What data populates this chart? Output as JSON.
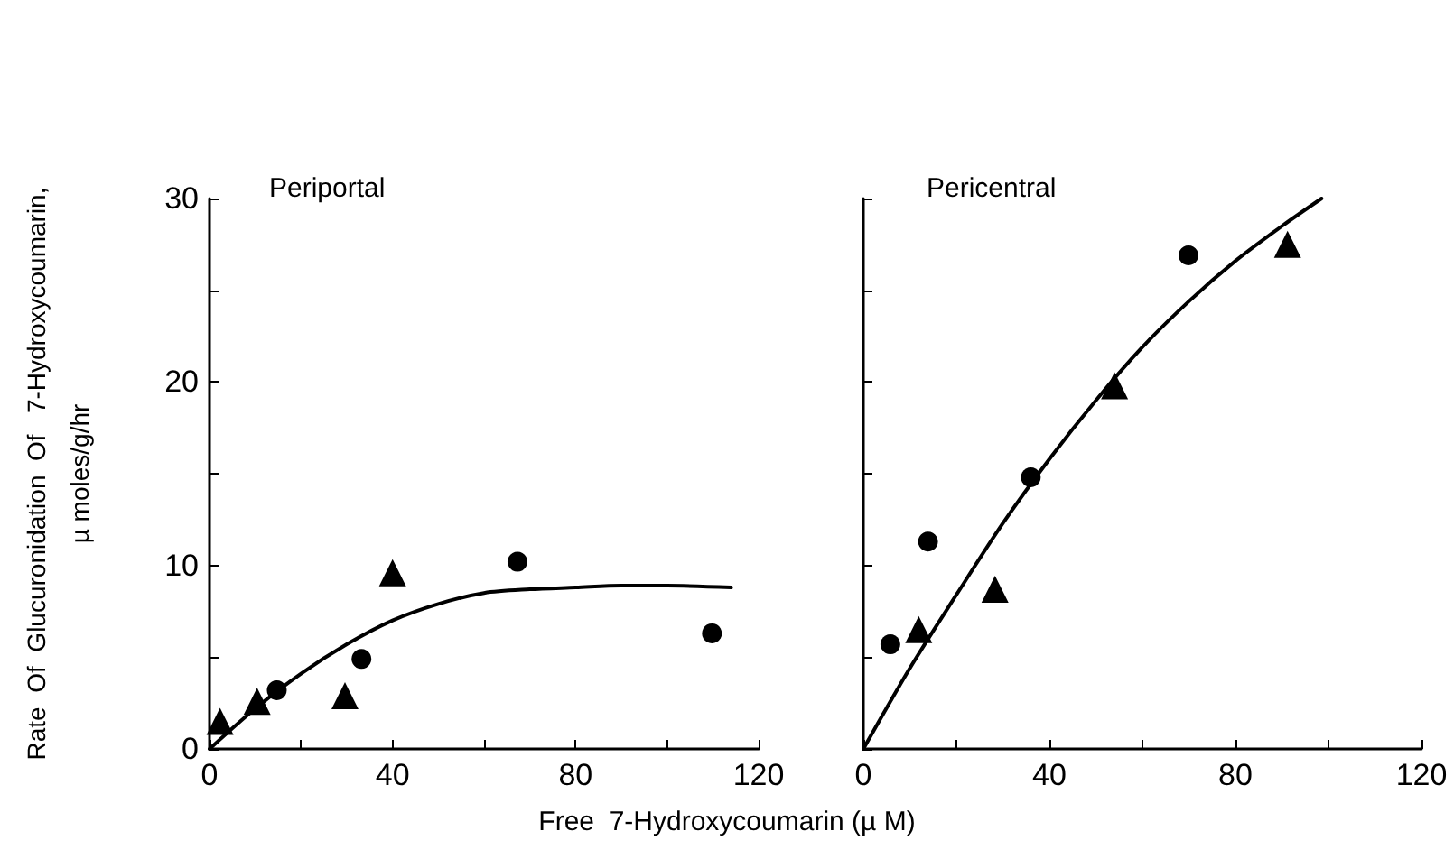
{
  "chart_data": [
    {
      "type": "scatter",
      "title": "Periportal",
      "xlabel": "Free  7-Hydroxycoumarin (µ M)",
      "ylabel": "Rate  Of  Glucuronidation  Of   7-Hydroxycoumarin,\nµ moles/g/hr",
      "xlim": [
        0,
        120
      ],
      "xticks": [
        0,
        {
          "value": 20,
          "label": null
        },
        40,
        {
          "value": 60,
          "label": null
        },
        80,
        {
          "value": 100,
          "label": null
        },
        120
      ],
      "ylim": [
        0,
        30
      ],
      "yticks": [
        0,
        {
          "value": 5,
          "label": null
        },
        10,
        {
          "value": 15,
          "label": null
        },
        20,
        {
          "value": 25,
          "label": null
        },
        30
      ],
      "grid": false,
      "series": [
        {
          "marker": "circle",
          "color": "#000000",
          "x": [
            14.7,
            33.2,
            67.3,
            109.8
          ],
          "values": [
            3.2,
            4.9,
            10.2,
            6.3
          ]
        },
        {
          "marker": "triangle",
          "color": "#000000",
          "x": [
            2.3,
            10.4,
            29.6,
            40
          ],
          "values": [
            1.5,
            2.6,
            2.9,
            9.6
          ]
        },
        {
          "type": "line",
          "marker": "none",
          "color": "#000000",
          "x": [
            0,
            10,
            20,
            30,
            40,
            50,
            60,
            70,
            80,
            90,
            100,
            114
          ],
          "values": [
            0,
            2.2,
            4.1,
            5.7,
            7.0,
            7.9,
            8.5,
            8.7,
            8.8,
            8.9,
            8.9,
            8.8
          ]
        }
      ]
    },
    {
      "type": "scatter",
      "title": "Pericentral",
      "xlim": [
        0,
        120
      ],
      "xticks": [
        0,
        {
          "value": 20,
          "label": null
        },
        40,
        {
          "value": 60,
          "label": null
        },
        80,
        {
          "value": 100,
          "label": null
        },
        120
      ],
      "ylim": [
        0,
        30
      ],
      "yticks": [
        0,
        {
          "value": 5,
          "label": null
        },
        {
          "value": 10,
          "label": null
        },
        {
          "value": 15,
          "label": null
        },
        {
          "value": 20,
          "label": null
        },
        {
          "value": 25,
          "label": null
        },
        {
          "value": 30,
          "label": null
        }
      ],
      "tick_labels": "x",
      "grid": false,
      "series": [
        {
          "marker": "circle",
          "color": "#000000",
          "x": [
            5.8,
            13.9,
            36,
            69.9
          ],
          "values": [
            5.7,
            11.3,
            14.8,
            26.9
          ]
        },
        {
          "marker": "triangle",
          "color": "#000000",
          "x": [
            11.9,
            28.3,
            54,
            91.2
          ],
          "values": [
            6.5,
            8.7,
            19.8,
            27.5
          ]
        },
        {
          "type": "line",
          "marker": "none",
          "color": "#000000",
          "x": [
            0,
            10,
            20,
            30,
            40,
            50,
            60,
            70,
            80,
            90,
            98.5
          ],
          "values": [
            0,
            4.4,
            8.4,
            12.3,
            15.8,
            19.0,
            21.9,
            24.4,
            26.6,
            28.5,
            30
          ]
        }
      ]
    }
  ]
}
